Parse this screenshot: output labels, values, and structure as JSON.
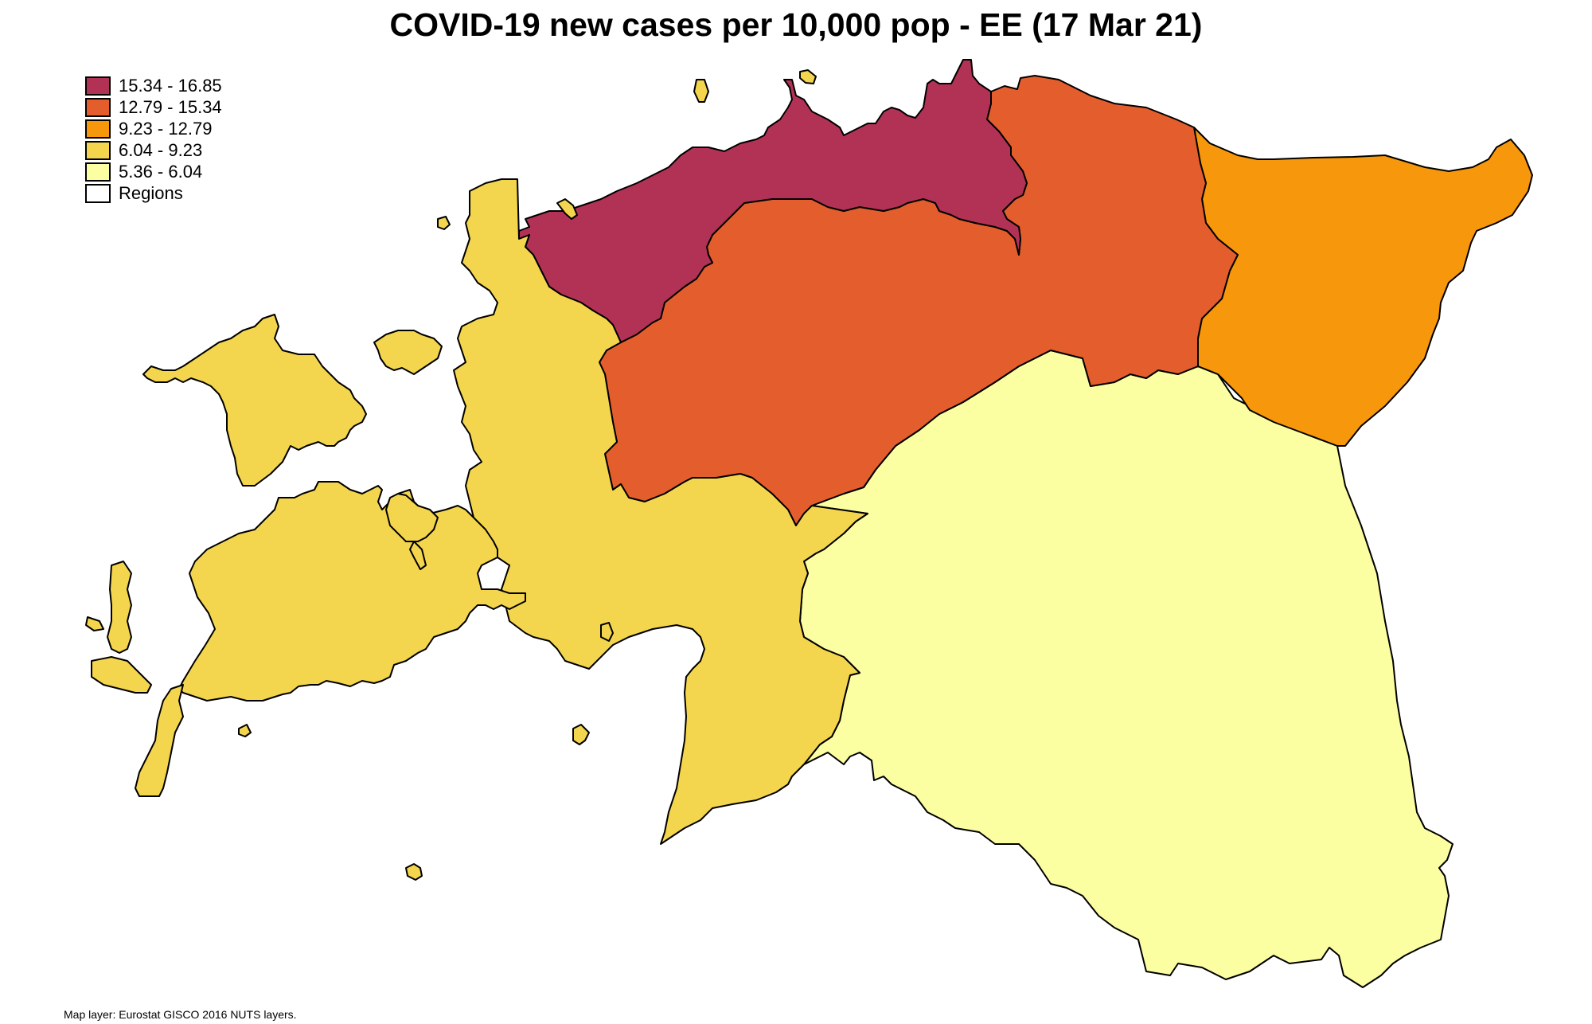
{
  "title": "COVID-19 new cases per 10,000 pop - EE (17 Mar 21)",
  "legend": {
    "items": [
      {
        "label": "15.34 - 16.85",
        "color": "#b23256"
      },
      {
        "label": "12.79 - 15.34",
        "color": "#e45e2d"
      },
      {
        "label": "9.23 - 12.79",
        "color": "#f7970b"
      },
      {
        "label": "6.04 - 9.23",
        "color": "#f4d64e"
      },
      {
        "label": "5.36 - 6.04",
        "color": "#fcfea2"
      },
      {
        "label": "Regions",
        "color": "#ffffff"
      }
    ]
  },
  "regions": [
    {
      "name": "north",
      "class": "15.34 - 16.85",
      "color": "#b23256"
    },
    {
      "name": "central",
      "class": "12.79 - 15.34",
      "color": "#e45e2d"
    },
    {
      "name": "northeast",
      "class": "9.23 - 12.79",
      "color": "#f7970b"
    },
    {
      "name": "west",
      "class": "6.04 - 9.23",
      "color": "#f4d64e"
    },
    {
      "name": "south",
      "class": "5.36 - 6.04",
      "color": "#fcfea2"
    }
  ],
  "source": "Map layer: Eurostat GISCO 2016 NUTS layers."
}
